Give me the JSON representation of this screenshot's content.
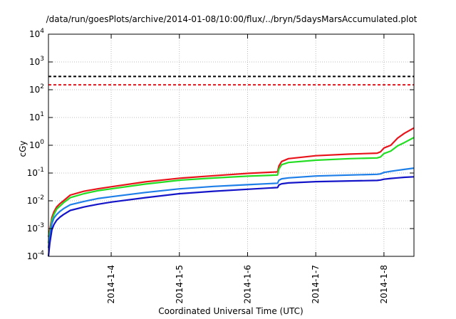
{
  "chart_data": {
    "type": "line",
    "title": "/data/run/goesPlots/archive/2014-01-08/10:00/flux/../bryn/5daysMarsAccumulated.plot",
    "xlabel": "Coordinated Universal Time (UTC)",
    "ylabel": "cGy",
    "y_scale": "log",
    "ylim": [
      0.0001,
      10000
    ],
    "xlim": [
      3.08,
      8.44
    ],
    "grid": true,
    "x_ticks": [
      {
        "value": 4,
        "label": "2014-1-4"
      },
      {
        "value": 5,
        "label": "2014-1-5"
      },
      {
        "value": 6,
        "label": "2014-1-6"
      },
      {
        "value": 7,
        "label": "2014-1-7"
      },
      {
        "value": 8,
        "label": "2014-1-8"
      }
    ],
    "y_ticks": [
      {
        "value": 0.0001,
        "base": "10",
        "exp": "-4"
      },
      {
        "value": 0.001,
        "base": "10",
        "exp": "-3"
      },
      {
        "value": 0.01,
        "base": "10",
        "exp": "-2"
      },
      {
        "value": 0.1,
        "base": "10",
        "exp": "-1"
      },
      {
        "value": 1,
        "base": "10",
        "exp": "0"
      },
      {
        "value": 10,
        "base": "10",
        "exp": "1"
      },
      {
        "value": 100,
        "base": "10",
        "exp": "2"
      },
      {
        "value": 1000,
        "base": "10",
        "exp": "3"
      },
      {
        "value": 10000,
        "base": "10",
        "exp": "4"
      }
    ],
    "thresholds": [
      {
        "y": 300,
        "color": "#000000"
      },
      {
        "y": 150,
        "color": "#e8141c"
      }
    ],
    "series": [
      {
        "color": "#e8141c",
        "x": [
          3.08,
          3.1,
          3.13,
          3.16,
          3.2,
          3.25,
          3.3,
          3.4,
          3.6,
          3.8,
          4.0,
          4.5,
          5.0,
          5.5,
          6.0,
          6.44,
          6.46,
          6.5,
          6.6,
          7.0,
          7.5,
          7.9,
          7.95,
          8.0,
          8.1,
          8.2,
          8.3,
          8.44
        ],
        "values": [
          0.0005,
          0.0009,
          0.0025,
          0.004,
          0.006,
          0.008,
          0.01,
          0.016,
          0.022,
          0.027,
          0.032,
          0.048,
          0.065,
          0.08,
          0.097,
          0.11,
          0.18,
          0.26,
          0.33,
          0.42,
          0.48,
          0.52,
          0.58,
          0.8,
          1.0,
          1.8,
          2.7,
          4.2
        ]
      },
      {
        "color": "#22dd22",
        "x": [
          3.08,
          3.1,
          3.13,
          3.16,
          3.2,
          3.25,
          3.3,
          3.4,
          3.6,
          3.8,
          4.0,
          4.5,
          5.0,
          5.5,
          6.0,
          6.44,
          6.46,
          6.5,
          6.6,
          7.0,
          7.5,
          7.9,
          7.95,
          8.0,
          8.1,
          8.2,
          8.3,
          8.44
        ],
        "values": [
          0.0003,
          0.0007,
          0.002,
          0.0032,
          0.005,
          0.0065,
          0.0085,
          0.013,
          0.018,
          0.023,
          0.027,
          0.04,
          0.055,
          0.066,
          0.077,
          0.085,
          0.14,
          0.2,
          0.24,
          0.29,
          0.33,
          0.35,
          0.38,
          0.5,
          0.62,
          0.95,
          1.25,
          1.9
        ]
      },
      {
        "color": "#1f7fe8",
        "x": [
          3.08,
          3.1,
          3.13,
          3.16,
          3.2,
          3.25,
          3.3,
          3.4,
          3.6,
          3.8,
          4.0,
          4.5,
          5.0,
          5.5,
          6.0,
          6.44,
          6.46,
          6.5,
          6.6,
          7.0,
          7.5,
          7.9,
          7.95,
          8.0,
          8.1,
          8.2,
          8.3,
          8.44
        ],
        "values": [
          0.0002,
          0.0005,
          0.0015,
          0.0024,
          0.0032,
          0.0042,
          0.0052,
          0.0072,
          0.0095,
          0.012,
          0.014,
          0.02,
          0.027,
          0.033,
          0.038,
          0.043,
          0.055,
          0.062,
          0.067,
          0.078,
          0.085,
          0.09,
          0.093,
          0.105,
          0.115,
          0.125,
          0.135,
          0.15
        ]
      },
      {
        "color": "#1414c8",
        "x": [
          3.08,
          3.1,
          3.13,
          3.16,
          3.2,
          3.25,
          3.3,
          3.4,
          3.6,
          3.8,
          4.0,
          4.5,
          5.0,
          5.5,
          6.0,
          6.44,
          6.46,
          6.5,
          6.6,
          7.0,
          7.5,
          7.9,
          7.95,
          8.0,
          8.1,
          8.2,
          8.3,
          8.44
        ],
        "values": [
          0.0001,
          0.0003,
          0.0009,
          0.0014,
          0.002,
          0.0026,
          0.0032,
          0.0045,
          0.006,
          0.0075,
          0.009,
          0.013,
          0.018,
          0.022,
          0.026,
          0.03,
          0.037,
          0.041,
          0.044,
          0.049,
          0.052,
          0.054,
          0.056,
          0.06,
          0.064,
          0.067,
          0.07,
          0.073
        ]
      }
    ]
  }
}
